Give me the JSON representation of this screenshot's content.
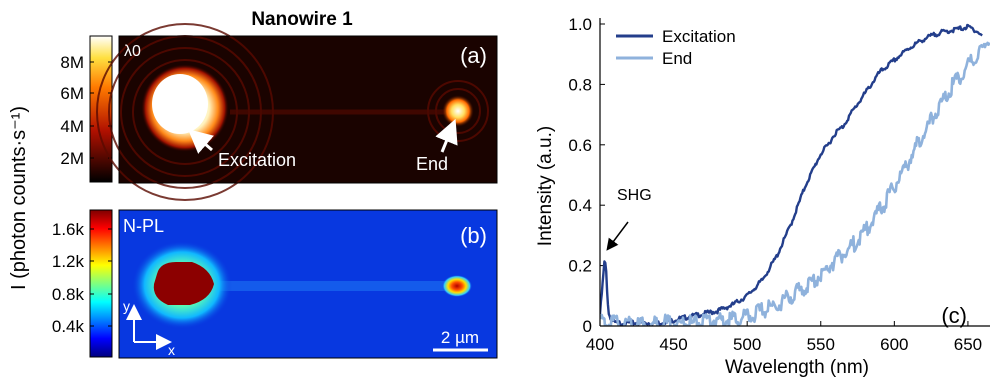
{
  "figure_title": "Nanowire 1",
  "colorbar_label": "I (photon counts·s⁻¹)",
  "panel_a": {
    "label": "(a)",
    "corner_label": "λ0",
    "annotation_excitation": "Excitation",
    "annotation_end": "End",
    "colorbar_ticks": [
      "8M",
      "6M",
      "4M",
      "2M"
    ]
  },
  "panel_b": {
    "label": "(b)",
    "corner_label": "N-PL",
    "colorbar_ticks": [
      "1.6k",
      "1.2k",
      "0.8k",
      "0.4k"
    ],
    "axis_y": "y",
    "axis_x": "x",
    "scalebar": "2 µm"
  },
  "chart_data": {
    "type": "line",
    "panel_label": "(c)",
    "xlabel": "Wavelength (nm)",
    "ylabel": "Intensity (a.u.)",
    "xlim": [
      400,
      665
    ],
    "ylim": [
      0,
      1.0
    ],
    "xticks": [
      400,
      450,
      500,
      550,
      600,
      650
    ],
    "yticks": [
      "0",
      "0.2",
      "0.4",
      "0.6",
      "0.8",
      "1.0"
    ],
    "legend_position": "top-left",
    "annotation": "SHG",
    "series": [
      {
        "name": "Excitation",
        "color": "#233e8b",
        "x": [
          400,
          402,
          403,
          404,
          405,
          406,
          408,
          410,
          415,
          420,
          430,
          440,
          450,
          460,
          470,
          480,
          490,
          500,
          510,
          520,
          530,
          540,
          550,
          555,
          560,
          565,
          570,
          580,
          590,
          600,
          610,
          620,
          630,
          640,
          650,
          655,
          660
        ],
        "values": [
          0.04,
          0.15,
          0.21,
          0.2,
          0.1,
          0.04,
          0.02,
          0.01,
          0.01,
          0.01,
          0.01,
          0.01,
          0.02,
          0.03,
          0.04,
          0.05,
          0.07,
          0.1,
          0.15,
          0.23,
          0.34,
          0.47,
          0.57,
          0.6,
          0.64,
          0.66,
          0.7,
          0.77,
          0.84,
          0.88,
          0.92,
          0.95,
          0.97,
          0.98,
          0.99,
          0.98,
          0.96
        ]
      },
      {
        "name": "End",
        "color": "#8fb2dc",
        "x": [
          400,
          410,
          420,
          430,
          440,
          450,
          460,
          470,
          480,
          490,
          500,
          510,
          520,
          530,
          540,
          550,
          560,
          570,
          580,
          590,
          600,
          610,
          620,
          630,
          640,
          650,
          660,
          665
        ],
        "values": [
          0.01,
          0.01,
          0.01,
          0.0,
          0.01,
          0.01,
          0.01,
          0.01,
          0.02,
          0.02,
          0.03,
          0.05,
          0.07,
          0.1,
          0.13,
          0.17,
          0.22,
          0.26,
          0.31,
          0.38,
          0.46,
          0.55,
          0.64,
          0.72,
          0.8,
          0.86,
          0.92,
          0.96
        ]
      }
    ]
  }
}
